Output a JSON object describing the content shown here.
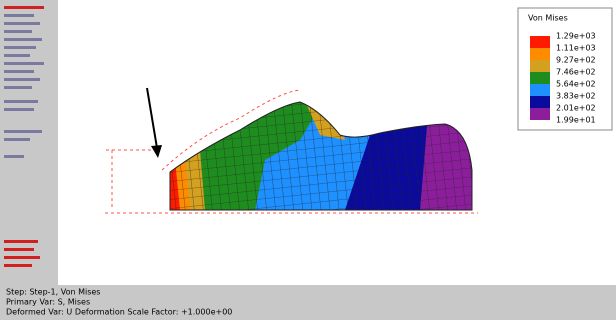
{
  "legend": {
    "title": "Von Mises",
    "labels": [
      "1.29e+03",
      "1.11e+03",
      "9.27e+02",
      "7.46e+02",
      "5.64e+02",
      "3.83e+02",
      "2.01e+02",
      "1.99e+01"
    ],
    "colors": [
      "#ff1a00",
      "#ff8c00",
      "#d4a020",
      "#1e8c1e",
      "#1e90ff",
      "#0a0a9c",
      "#8c1e9c"
    ]
  },
  "status": [
    "Step: Step-1, Von Mises",
    "Primary Var: S, Mises",
    "Deformed Var: U   Deformation Scale Factor: +1.000e+00"
  ]
}
